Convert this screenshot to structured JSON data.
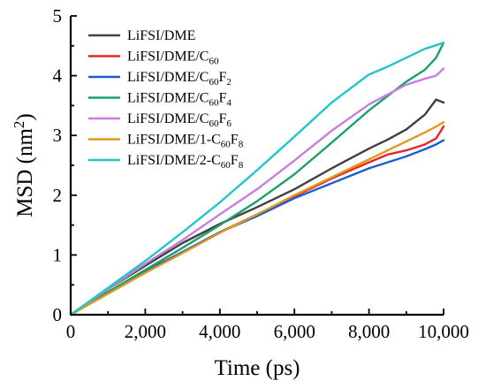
{
  "chart_data": {
    "type": "line",
    "xlabel": "Time (ps)",
    "ylabel_text": "MSD (nm",
    "ylabel_sup": "2",
    "ylabel_close": ")",
    "xlim": [
      0,
      10000
    ],
    "ylim": [
      0,
      5
    ],
    "x_ticks": [
      0,
      2000,
      4000,
      6000,
      8000,
      10000
    ],
    "x_tick_labels": [
      "0",
      "2,000",
      "4,000",
      "6,000",
      "8,000",
      "10,000"
    ],
    "y_ticks": [
      0,
      1,
      2,
      3,
      4,
      5
    ],
    "y_tick_labels": [
      "0",
      "1",
      "2",
      "3",
      "4",
      "5"
    ],
    "grid": false,
    "legend_position": "top-left",
    "series": [
      {
        "name": "LiFSI/DME",
        "name_parts": [
          {
            "t": "LiFSI/DME"
          }
        ],
        "color": "#404040",
        "x": [
          0,
          1000,
          2000,
          3000,
          4000,
          5000,
          6000,
          7000,
          8000,
          8500,
          9000,
          9500,
          9800,
          10000
        ],
        "y": [
          0,
          0.43,
          0.82,
          1.2,
          1.52,
          1.8,
          2.1,
          2.45,
          2.78,
          2.93,
          3.1,
          3.35,
          3.6,
          3.55
        ]
      },
      {
        "name": "LiFSI/DME/C60",
        "name_parts": [
          {
            "t": "LiFSI/DME/C"
          },
          {
            "t": "60",
            "sub": true
          }
        ],
        "color": "#e8262a",
        "x": [
          0,
          1000,
          2000,
          3000,
          4000,
          5000,
          6000,
          7000,
          8000,
          8500,
          9000,
          9500,
          9800,
          10000
        ],
        "y": [
          0,
          0.38,
          0.73,
          1.05,
          1.38,
          1.68,
          1.98,
          2.28,
          2.55,
          2.68,
          2.75,
          2.85,
          2.95,
          3.15
        ]
      },
      {
        "name": "LiFSI/DME/C60F2",
        "name_parts": [
          {
            "t": "LiFSI/DME/C"
          },
          {
            "t": "60",
            "sub": true
          },
          {
            "t": "F"
          },
          {
            "t": "2",
            "sub": true
          }
        ],
        "color": "#1a5fd0",
        "x": [
          0,
          1000,
          2000,
          3000,
          4000,
          5000,
          6000,
          7000,
          8000,
          8500,
          9000,
          9500,
          9800,
          10000
        ],
        "y": [
          0,
          0.37,
          0.72,
          1.05,
          1.38,
          1.65,
          1.95,
          2.2,
          2.45,
          2.55,
          2.65,
          2.77,
          2.85,
          2.92
        ]
      },
      {
        "name": "LiFSI/DME/C60F4",
        "name_parts": [
          {
            "t": "LiFSI/DME/C"
          },
          {
            "t": "60",
            "sub": true
          },
          {
            "t": "F"
          },
          {
            "t": "4",
            "sub": true
          }
        ],
        "color": "#1aa06a",
        "x": [
          0,
          1000,
          2000,
          3000,
          4000,
          5000,
          6000,
          7000,
          8000,
          9000,
          9500,
          9800,
          10000
        ],
        "y": [
          0,
          0.38,
          0.75,
          1.12,
          1.5,
          1.9,
          2.35,
          2.88,
          3.42,
          3.9,
          4.1,
          4.3,
          4.55
        ]
      },
      {
        "name": "LiFSI/DME/C60F6",
        "name_parts": [
          {
            "t": "LiFSI/DME/C"
          },
          {
            "t": "60",
            "sub": true
          },
          {
            "t": "F"
          },
          {
            "t": "6",
            "sub": true
          }
        ],
        "color": "#c77ddf",
        "x": [
          0,
          1000,
          2000,
          3000,
          4000,
          5000,
          6000,
          7000,
          8000,
          9000,
          9500,
          9800,
          10000
        ],
        "y": [
          0,
          0.43,
          0.85,
          1.25,
          1.68,
          2.1,
          2.58,
          3.08,
          3.52,
          3.85,
          3.95,
          4.0,
          4.12
        ]
      },
      {
        "name": "LiFSI/DME/1-C60F8",
        "name_parts": [
          {
            "t": "LiFSI/DME/1-C"
          },
          {
            "t": "60",
            "sub": true
          },
          {
            "t": "F"
          },
          {
            "t": "8",
            "sub": true
          }
        ],
        "color": "#e09a1e",
        "x": [
          0,
          1000,
          2000,
          3000,
          4000,
          5000,
          6000,
          7000,
          8000,
          8500,
          9000,
          9500,
          9800,
          10000
        ],
        "y": [
          0,
          0.35,
          0.7,
          1.03,
          1.37,
          1.68,
          2.0,
          2.3,
          2.6,
          2.75,
          2.9,
          3.05,
          3.15,
          3.22
        ]
      },
      {
        "name": "LiFSI/DME/2-C60F8",
        "name_parts": [
          {
            "t": "LiFSI/DME/2-C"
          },
          {
            "t": "60",
            "sub": true
          },
          {
            "t": "F"
          },
          {
            "t": "8",
            "sub": true
          }
        ],
        "color": "#22c6c6",
        "x": [
          0,
          1000,
          2000,
          3000,
          4000,
          5000,
          6000,
          7000,
          8000,
          8500,
          9000,
          9500,
          10000
        ],
        "y": [
          0,
          0.45,
          0.9,
          1.38,
          1.88,
          2.42,
          2.98,
          3.55,
          4.02,
          4.15,
          4.3,
          4.45,
          4.55
        ]
      }
    ]
  }
}
